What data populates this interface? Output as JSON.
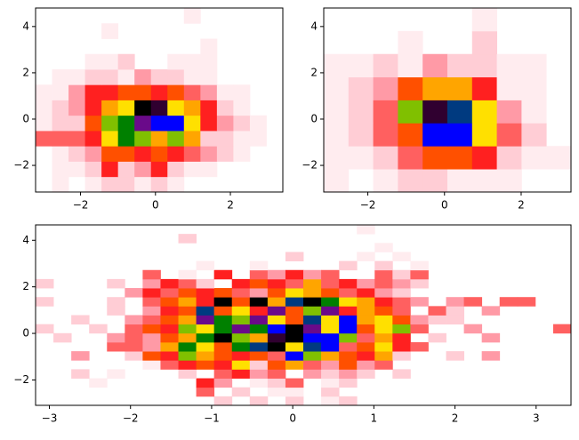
{
  "chart_data": [
    {
      "type": "hist2d",
      "xlim": [
        -3.2,
        3.4
      ],
      "ylim": [
        -3.15,
        4.8
      ],
      "xticks": [
        {
          "value": -2,
          "label": "−2"
        },
        0,
        2
      ],
      "yticks": [
        {
          "value": -2,
          "label": "−2"
        },
        0,
        2,
        4
      ],
      "xbins": [
        -3.2,
        -2.76,
        -2.32,
        -1.88,
        -1.44,
        -1.0,
        -0.56,
        -0.12,
        0.32,
        0.76,
        1.2,
        1.64,
        2.08,
        2.52,
        2.96,
        3.4
      ],
      "ybins": [
        -3.15,
        -2.4875,
        -1.825,
        -1.1625,
        -0.5,
        0.1625,
        0.825,
        1.4875,
        2.15,
        2.8125,
        3.475,
        4.1375,
        4.8
      ],
      "colormap": [
        "#ffecef",
        "#ffcdd5",
        "#ff9aa6",
        "#ff6060",
        "#ff2020",
        "#ff5000",
        "#ffa500",
        "#ffe000",
        "#80c000",
        "#008000",
        "#0000ff",
        "#003a80",
        "#6a0a8a",
        "#300030",
        "#000000"
      ],
      "counts": [
        [
          0,
          1,
          0,
          1,
          2,
          2,
          1,
          2,
          1,
          0,
          0,
          0,
          0,
          0,
          0
        ],
        [
          0,
          1,
          1,
          2,
          5,
          2,
          3,
          5,
          2,
          1,
          1,
          0,
          0,
          0,
          0
        ],
        [
          0,
          1,
          2,
          3,
          6,
          6,
          5,
          6,
          5,
          4,
          3,
          2,
          1,
          0,
          0
        ],
        [
          4,
          4,
          4,
          5,
          8,
          10,
          9,
          7,
          9,
          7,
          2,
          2,
          1,
          1,
          0
        ],
        [
          1,
          2,
          2,
          6,
          9,
          10,
          13,
          11,
          11,
          8,
          5,
          3,
          2,
          1,
          0
        ],
        [
          1,
          2,
          3,
          5,
          7,
          8,
          15,
          14,
          8,
          7,
          5,
          2,
          1,
          0,
          0
        ],
        [
          1,
          1,
          3,
          5,
          5,
          6,
          6,
          5,
          6,
          4,
          3,
          1,
          1,
          0,
          0
        ],
        [
          0,
          1,
          1,
          2,
          2,
          1,
          3,
          2,
          2,
          1,
          1,
          0,
          0,
          0,
          0
        ],
        [
          0,
          0,
          0,
          1,
          1,
          2,
          0,
          0,
          1,
          1,
          1,
          0,
          0,
          0,
          0
        ],
        [
          0,
          0,
          0,
          0,
          0,
          0,
          0,
          0,
          0,
          0,
          1,
          0,
          0,
          0,
          0
        ],
        [
          0,
          0,
          0,
          0,
          1,
          0,
          0,
          0,
          0,
          0,
          0,
          0,
          0,
          0,
          0
        ],
        [
          0,
          0,
          0,
          0,
          0,
          0,
          0,
          0,
          0,
          1,
          0,
          0,
          0,
          0,
          0
        ]
      ]
    },
    {
      "type": "hist2d",
      "xlim": [
        -3.15,
        3.3
      ],
      "ylim": [
        -3.15,
        4.8
      ],
      "xticks": [
        {
          "value": -2,
          "label": "−2"
        },
        0,
        2
      ],
      "yticks": [
        {
          "value": -2,
          "label": "−2"
        },
        0,
        2,
        4
      ],
      "xbins": [
        -3.15,
        -2.505,
        -1.86,
        -1.215,
        -0.57,
        0.075,
        0.72,
        1.365,
        2.01,
        2.655,
        3.3
      ],
      "ybins": [
        -3.15,
        -2.15625,
        -1.1625,
        -0.16875,
        0.825,
        1.81875,
        2.8125,
        3.80625,
        4.8
      ],
      "colormap": [
        "#ffecef",
        "#ffcdd5",
        "#ff9aa6",
        "#ff6060",
        "#ff2020",
        "#ff5000",
        "#ffa500",
        "#ffe000",
        "#80c000",
        "#008000",
        "#0000ff",
        "#003a80",
        "#6a0a8a",
        "#300030",
        "#000000"
      ],
      "counts": [
        [
          1,
          0,
          1,
          2,
          2,
          1,
          1,
          1,
          0,
          0
        ],
        [
          1,
          1,
          2,
          4,
          6,
          6,
          5,
          2,
          1,
          1
        ],
        [
          1,
          2,
          4,
          6,
          11,
          11,
          8,
          4,
          2,
          0
        ],
        [
          1,
          2,
          4,
          9,
          14,
          12,
          8,
          3,
          1,
          0
        ],
        [
          1,
          2,
          3,
          6,
          7,
          7,
          5,
          1,
          1,
          0
        ],
        [
          1,
          1,
          2,
          1,
          3,
          2,
          2,
          1,
          1,
          0
        ],
        [
          0,
          0,
          0,
          1,
          0,
          0,
          2,
          0,
          0,
          0
        ],
        [
          0,
          0,
          0,
          0,
          0,
          0,
          1,
          0,
          0,
          0
        ]
      ]
    },
    {
      "type": "hist2d",
      "xlim": [
        -3.17,
        3.43
      ],
      "ylim": [
        -3.09,
        4.66
      ],
      "xticks": [
        {
          "value": -3,
          "label": "−3"
        },
        {
          "value": -2,
          "label": "−2"
        },
        {
          "value": -1,
          "label": "−1"
        },
        0,
        1,
        2,
        3
      ],
      "yticks": [
        {
          "value": -2,
          "label": "−2"
        },
        0,
        2,
        4
      ],
      "xbins": [
        -3.17,
        -2.95,
        -2.73,
        -2.51,
        -2.29,
        -2.07,
        -1.85,
        -1.63,
        -1.41,
        -1.19,
        -0.97,
        -0.75,
        -0.53,
        -0.31,
        -0.09,
        0.13,
        0.35,
        0.57,
        0.79,
        1.01,
        1.23,
        1.45,
        1.67,
        1.89,
        2.11,
        2.33,
        2.55,
        2.77,
        2.99,
        3.21,
        3.43
      ],
      "ybins": [
        -3.09,
        -2.7025,
        -2.315,
        -1.9275,
        -1.54,
        -1.1525,
        -0.765,
        -0.3775,
        0.01,
        0.3975,
        0.785,
        1.1725,
        1.56,
        1.9475,
        2.335,
        2.7225,
        3.11,
        3.4975,
        3.885,
        4.2725,
        4.66
      ],
      "colormap": [
        "#ffecef",
        "#ffcdd5",
        "#ff9aa6",
        "#ff6060",
        "#ff2020",
        "#ff5000",
        "#ffa500",
        "#ffe000",
        "#80c000",
        "#008000",
        "#0000ff",
        "#003a80",
        "#6a0a8a",
        "#300030",
        "#000000"
      ],
      "counts": [
        [
          0,
          0,
          0,
          0,
          0,
          0,
          0,
          0,
          0,
          0,
          2,
          0,
          2,
          0,
          2,
          0,
          1,
          2,
          0,
          0,
          0,
          0,
          0,
          0,
          0,
          0,
          0,
          0,
          0,
          0
        ],
        [
          0,
          0,
          0,
          0,
          0,
          0,
          0,
          0,
          0,
          4,
          0,
          2,
          0,
          1,
          1,
          0,
          2,
          0,
          0,
          0,
          0,
          0,
          0,
          0,
          0,
          0,
          0,
          0,
          0,
          0
        ],
        [
          0,
          0,
          0,
          1,
          0,
          0,
          0,
          0,
          0,
          5,
          3,
          0,
          1,
          2,
          4,
          0,
          1,
          2,
          0,
          0,
          0,
          0,
          0,
          0,
          0,
          0,
          0,
          0,
          0,
          0
        ],
        [
          0,
          0,
          2,
          0,
          1,
          0,
          0,
          0,
          2,
          0,
          4,
          5,
          3,
          4,
          0,
          3,
          2,
          3,
          2,
          0,
          2,
          0,
          0,
          0,
          0,
          0,
          0,
          0,
          0,
          0
        ],
        [
          0,
          0,
          0,
          0,
          0,
          0,
          1,
          4,
          5,
          6,
          5,
          8,
          2,
          6,
          7,
          4,
          3,
          6,
          3,
          4,
          0,
          0,
          0,
          0,
          0,
          0,
          0,
          0,
          0,
          0
        ],
        [
          0,
          0,
          3,
          0,
          0,
          2,
          6,
          5,
          9,
          7,
          6,
          5,
          6,
          4,
          11,
          9,
          7,
          6,
          5,
          7,
          2,
          0,
          0,
          2,
          0,
          3,
          0,
          0,
          0,
          0
        ],
        [
          0,
          0,
          0,
          0,
          4,
          4,
          3,
          7,
          10,
          8,
          6,
          10,
          12,
          15,
          8,
          12,
          11,
          4,
          6,
          8,
          5,
          4,
          0,
          0,
          0,
          0,
          0,
          0,
          0,
          0
        ],
        [
          0,
          2,
          0,
          0,
          3,
          4,
          3,
          6,
          7,
          10,
          15,
          9,
          7,
          14,
          15,
          11,
          11,
          9,
          4,
          7,
          5,
          0,
          2,
          0,
          0,
          3,
          0,
          0,
          0,
          0
        ],
        [
          2,
          0,
          0,
          2,
          0,
          4,
          6,
          5,
          9,
          8,
          10,
          13,
          10,
          11,
          15,
          13,
          8,
          11,
          6,
          8,
          9,
          4,
          0,
          0,
          3,
          0,
          0,
          0,
          0,
          4
        ],
        [
          0,
          0,
          2,
          0,
          0,
          3,
          4,
          6,
          7,
          13,
          10,
          9,
          13,
          8,
          6,
          12,
          8,
          11,
          7,
          8,
          6,
          3,
          2,
          2,
          0,
          0,
          0,
          0,
          0,
          0
        ],
        [
          0,
          0,
          0,
          0,
          2,
          0,
          3,
          5,
          6,
          12,
          6,
          8,
          5,
          13,
          6,
          9,
          13,
          5,
          7,
          6,
          4,
          0,
          4,
          2,
          0,
          3,
          0,
          0,
          0,
          0
        ],
        [
          2,
          0,
          0,
          0,
          2,
          0,
          4,
          6,
          7,
          5,
          15,
          6,
          15,
          7,
          12,
          15,
          10,
          8,
          7,
          5,
          4,
          3,
          0,
          3,
          4,
          0,
          4,
          4,
          0,
          0
        ],
        [
          0,
          0,
          0,
          0,
          0,
          3,
          5,
          4,
          6,
          5,
          6,
          4,
          3,
          6,
          8,
          7,
          6,
          4,
          5,
          3,
          2,
          0,
          0,
          0,
          0,
          0,
          0,
          0,
          0,
          0
        ],
        [
          2,
          0,
          0,
          0,
          2,
          0,
          3,
          5,
          4,
          2,
          0,
          5,
          6,
          5,
          4,
          7,
          4,
          5,
          3,
          4,
          3,
          2,
          0,
          0,
          0,
          0,
          0,
          0,
          0,
          0
        ],
        [
          0,
          0,
          0,
          0,
          0,
          0,
          4,
          0,
          1,
          0,
          5,
          0,
          4,
          3,
          5,
          3,
          4,
          0,
          0,
          4,
          2,
          4,
          0,
          0,
          0,
          0,
          0,
          0,
          0,
          0
        ],
        [
          0,
          0,
          0,
          0,
          0,
          0,
          0,
          0,
          0,
          1,
          0,
          0,
          1,
          0,
          0,
          0,
          0,
          2,
          0,
          2,
          0,
          1,
          0,
          0,
          0,
          0,
          0,
          0,
          0,
          0
        ],
        [
          0,
          0,
          0,
          0,
          0,
          0,
          0,
          0,
          0,
          0,
          0,
          0,
          0,
          0,
          2,
          0,
          0,
          0,
          1,
          0,
          1,
          0,
          0,
          0,
          0,
          0,
          0,
          0,
          0,
          0
        ],
        [
          0,
          0,
          0,
          0,
          0,
          0,
          0,
          0,
          0,
          0,
          0,
          0,
          0,
          0,
          0,
          0,
          0,
          0,
          0,
          1,
          0,
          0,
          0,
          0,
          0,
          0,
          0,
          0,
          0,
          0
        ],
        [
          0,
          0,
          0,
          0,
          0,
          0,
          0,
          0,
          2,
          0,
          0,
          0,
          0,
          0,
          0,
          0,
          0,
          0,
          0,
          0,
          0,
          0,
          0,
          0,
          0,
          0,
          0,
          0,
          0,
          0
        ],
        [
          0,
          0,
          0,
          0,
          0,
          0,
          0,
          0,
          0,
          0,
          0,
          0,
          0,
          0,
          0,
          0,
          0,
          0,
          1,
          0,
          0,
          0,
          0,
          0,
          0,
          0,
          0,
          0,
          0,
          0
        ]
      ]
    }
  ]
}
